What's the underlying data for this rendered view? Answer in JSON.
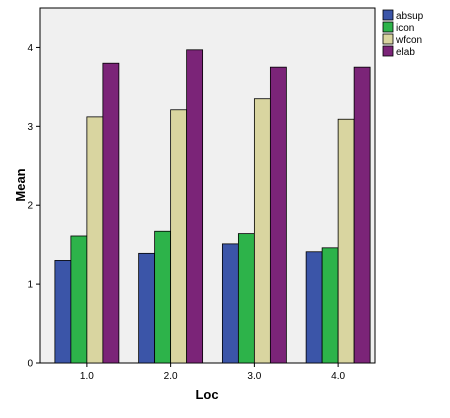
{
  "chart_data": {
    "type": "bar",
    "categories": [
      "1.0",
      "2.0",
      "3.0",
      "4.0"
    ],
    "series": [
      {
        "name": "absup",
        "color": "#3b55a8",
        "values": [
          1.3,
          1.39,
          1.51,
          1.41
        ]
      },
      {
        "name": "icon",
        "color": "#2db34a",
        "values": [
          1.61,
          1.67,
          1.64,
          1.46
        ]
      },
      {
        "name": "wfcon",
        "color": "#d9d5a0",
        "values": [
          3.12,
          3.21,
          3.35,
          3.09
        ]
      },
      {
        "name": "elab",
        "color": "#7b2478",
        "values": [
          3.8,
          3.97,
          3.75,
          3.75
        ]
      }
    ],
    "xlabel": "Loc",
    "ylabel": "Mean",
    "ylim": [
      0,
      4.5
    ],
    "yticks": [
      0,
      1,
      2,
      3,
      4
    ],
    "grid": false,
    "legend": "top-right",
    "plot_background": "#f0f0f0"
  }
}
